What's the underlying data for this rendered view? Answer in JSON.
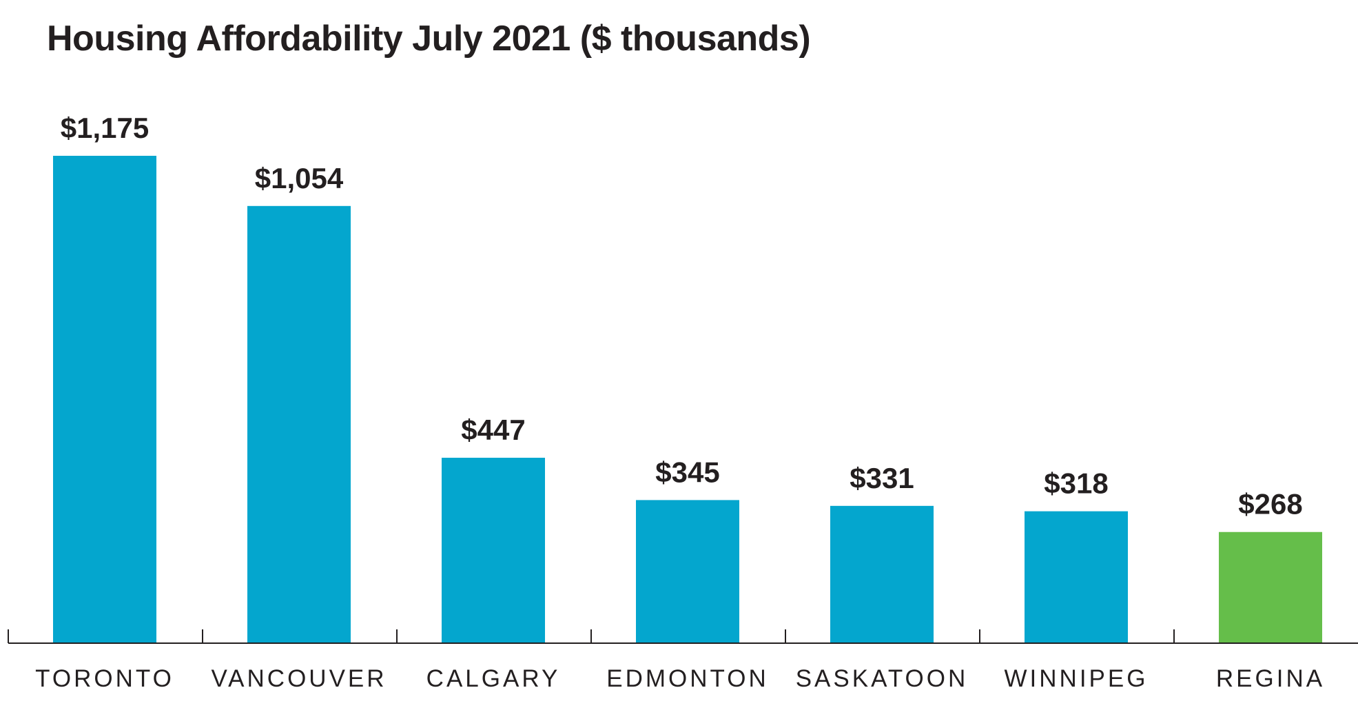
{
  "chart_data": {
    "type": "bar",
    "title": "Housing Affordability July 2021 ($ thousands)",
    "xlabel": "",
    "ylabel": "",
    "categories": [
      "TORONTO",
      "VANCOUVER",
      "CALGARY",
      "EDMONTON",
      "SASKATOON",
      "WINNIPEG",
      "REGINA"
    ],
    "values": [
      1175,
      1054,
      447,
      345,
      331,
      318,
      268
    ],
    "value_labels": [
      "$1,175",
      "$1,054",
      "$447",
      "$345",
      "$331",
      "$318",
      "$268"
    ],
    "bar_colors": [
      "#04a6ce",
      "#04a6ce",
      "#04a6ce",
      "#04a6ce",
      "#04a6ce",
      "#04a6ce",
      "#65be4a"
    ],
    "ylim": [
      0,
      1175
    ],
    "grid": false,
    "legend": "none"
  },
  "colors": {
    "primary_bar": "#04a6ce",
    "highlight_bar": "#65be4a",
    "text": "#231f20",
    "axis": "#231f20"
  }
}
